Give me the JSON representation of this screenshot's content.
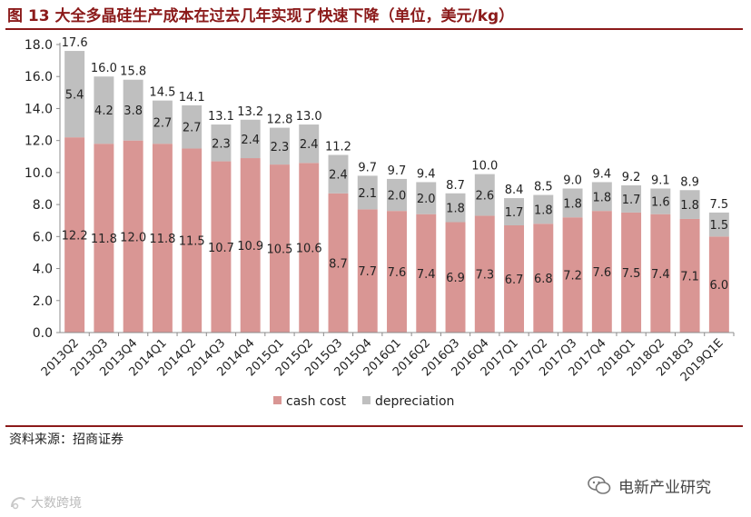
{
  "figure": {
    "title": "图 13 大全多晶硅生产成本在过去几年实现了快速下降（单位，美元/kg）",
    "source": "资料来源：招商证券",
    "watermark_right": "电新产业研究",
    "watermark_left": "大数跨境"
  },
  "colors": {
    "title": "#8B1A1A",
    "cash_cost": "#D99694",
    "depreciation": "#BFBFBF",
    "axis": "#8C8C8C",
    "text": "#222222"
  },
  "chart_data": {
    "type": "bar",
    "stacked": true,
    "title": "大全多晶硅生产成本在过去几年实现了快速下降（单位，美元/kg）",
    "xlabel": "",
    "ylabel": "",
    "ylim": [
      0,
      18
    ],
    "yticks": [
      "0.0",
      "2.0",
      "4.0",
      "6.0",
      "8.0",
      "10.0",
      "12.0",
      "14.0",
      "16.0",
      "18.0"
    ],
    "categories": [
      "2013Q2",
      "2013Q3",
      "2013Q4",
      "2014Q1",
      "2014Q2",
      "2014Q3",
      "2014Q4",
      "2015Q1",
      "2015Q2",
      "2015Q3",
      "2015Q4",
      "2016Q1",
      "2016Q2",
      "2016Q3",
      "2016Q4",
      "2017Q1",
      "2017Q2",
      "2017Q3",
      "2017Q4",
      "2018Q1",
      "2018Q2",
      "2018Q3",
      "2019Q1E"
    ],
    "series": [
      {
        "name": "cash cost",
        "values": [
          12.2,
          11.8,
          12.0,
          11.8,
          11.5,
          10.7,
          10.9,
          10.5,
          10.6,
          8.7,
          7.7,
          7.6,
          7.4,
          6.9,
          7.3,
          6.7,
          6.8,
          7.2,
          7.6,
          7.5,
          7.4,
          7.1,
          6.0
        ]
      },
      {
        "name": "depreciation",
        "values": [
          5.4,
          4.2,
          3.8,
          2.7,
          2.7,
          2.3,
          2.4,
          2.3,
          2.4,
          2.4,
          2.1,
          2.0,
          2.0,
          1.8,
          2.6,
          1.7,
          1.8,
          1.8,
          1.8,
          1.7,
          1.6,
          1.8,
          1.5
        ]
      }
    ],
    "totals": [
      17.6,
      16.0,
      15.8,
      14.5,
      14.1,
      13.1,
      13.2,
      12.8,
      13.0,
      11.2,
      9.7,
      9.7,
      9.4,
      8.7,
      10.0,
      8.4,
      8.5,
      9.0,
      9.4,
      9.2,
      9.1,
      8.9,
      7.5
    ],
    "legend": {
      "position": "bottom",
      "entries": [
        "cash cost",
        "depreciation"
      ]
    }
  }
}
